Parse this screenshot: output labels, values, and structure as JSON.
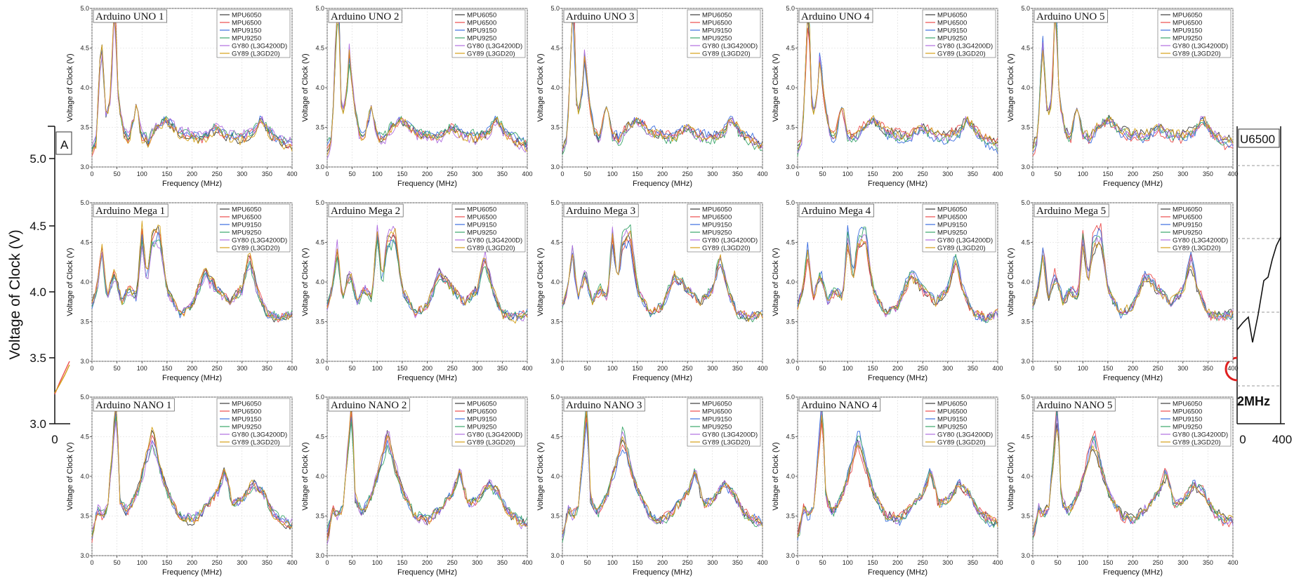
{
  "colors": {
    "MPU6050": "#3c3c3c",
    "MPU6500": "#ec4c4c",
    "MPU9150": "#3c6fe0",
    "MPU9250": "#3aa66a",
    "GY80 (L3G4200D)": "#b06ee0",
    "GY89 (L3GD20)": "#d4a017",
    "grid": "#d9d9d9",
    "highlight_circle": "#e02020"
  },
  "background_figure": {
    "ylabel": "Voltage of Clock (V)",
    "y_ticks": [
      "5.0",
      "4.5",
      "4.0",
      "3.5",
      "3.0"
    ],
    "left_x_tick": "0",
    "right_x_ticks": [
      "0",
      "400"
    ],
    "right_partial_legend": "U6500",
    "right_partial_label": "2MHz",
    "left_partial_title": "A"
  },
  "chart_data": [
    {
      "type": "line",
      "title": "Arduino UNO 1",
      "row": "UNO",
      "peak_x": 45,
      "col": 0
    },
    {
      "type": "line",
      "title": "Arduino UNO 2",
      "row": "UNO",
      "peak_x": 22,
      "col": 1
    },
    {
      "type": "line",
      "title": "Arduino UNO 3",
      "row": "UNO",
      "peak_x": 22,
      "col": 2
    },
    {
      "type": "line",
      "title": "Arduino UNO 4",
      "row": "UNO",
      "peak_x": 22,
      "col": 3
    },
    {
      "type": "line",
      "title": "Arduino UNO 5",
      "row": "UNO",
      "peak_x": 45,
      "col": 4
    },
    {
      "type": "line",
      "title": "Arduino Mega 1",
      "row": "Mega",
      "peak_x": 100,
      "col": 0
    },
    {
      "type": "line",
      "title": "Arduino Mega 2",
      "row": "Mega",
      "peak_x": 100,
      "col": 1
    },
    {
      "type": "line",
      "title": "Arduino Mega 3",
      "row": "Mega",
      "peak_x": 100,
      "col": 2
    },
    {
      "type": "line",
      "title": "Arduino Mega 4",
      "row": "Mega",
      "peak_x": 100,
      "col": 3
    },
    {
      "type": "line",
      "title": "Arduino Mega 5",
      "row": "Mega",
      "peak_x": 100,
      "col": 4
    },
    {
      "type": "line",
      "title": "Arduino NANO 1",
      "row": "NANO",
      "peak_x": 48,
      "col": 0
    },
    {
      "type": "line",
      "title": "Arduino NANO 2",
      "row": "NANO",
      "peak_x": 48,
      "col": 1
    },
    {
      "type": "line",
      "title": "Arduino NANO 3",
      "row": "NANO",
      "peak_x": 48,
      "col": 2
    },
    {
      "type": "line",
      "title": "Arduino NANO 4",
      "row": "NANO",
      "peak_x": 48,
      "col": 3
    },
    {
      "type": "line",
      "title": "Arduino NANO 5",
      "row": "NANO",
      "peak_x": 48,
      "col": 4
    }
  ],
  "shared_axes": {
    "xlabel": "Frequency (MHz)",
    "ylabel": "Voltage of Clock (V)",
    "xlim": [
      0,
      400
    ],
    "ylim": [
      3.0,
      5.0
    ],
    "x_ticks": [
      "0",
      "50",
      "100",
      "150",
      "200",
      "250",
      "300",
      "350",
      "400"
    ],
    "y_ticks": [
      "3.0",
      "3.5",
      "4.0",
      "4.5",
      "5.0"
    ],
    "grid": true,
    "legend_position": "top-right"
  },
  "series_names": [
    "MPU6050",
    "MPU6500",
    "MPU9150",
    "MPU9250",
    "GY80 (L3G4200D)",
    "GY89 (L3GD20)"
  ],
  "row_profiles": {
    "UNO": {
      "points": [
        [
          0,
          3.2
        ],
        [
          10,
          3.35
        ],
        [
          20,
          4.6
        ],
        [
          30,
          3.6
        ],
        [
          40,
          3.9
        ],
        [
          45,
          4.4
        ],
        [
          55,
          3.8
        ],
        [
          65,
          3.45
        ],
        [
          75,
          3.35
        ],
        [
          90,
          3.78
        ],
        [
          100,
          3.4
        ],
        [
          115,
          3.35
        ],
        [
          130,
          3.5
        ],
        [
          150,
          3.6
        ],
        [
          175,
          3.45
        ],
        [
          200,
          3.4
        ],
        [
          225,
          3.38
        ],
        [
          250,
          3.5
        ],
        [
          275,
          3.4
        ],
        [
          300,
          3.38
        ],
        [
          325,
          3.45
        ],
        [
          340,
          3.62
        ],
        [
          355,
          3.45
        ],
        [
          375,
          3.35
        ],
        [
          400,
          3.28
        ]
      ]
    },
    "Mega": {
      "points": [
        [
          0,
          3.7
        ],
        [
          10,
          3.9
        ],
        [
          20,
          4.4
        ],
        [
          30,
          3.8
        ],
        [
          45,
          4.1
        ],
        [
          60,
          3.75
        ],
        [
          75,
          3.9
        ],
        [
          90,
          3.8
        ],
        [
          100,
          4.6
        ],
        [
          110,
          4.0
        ],
        [
          120,
          4.5
        ],
        [
          135,
          4.6
        ],
        [
          150,
          3.9
        ],
        [
          175,
          3.6
        ],
        [
          200,
          3.7
        ],
        [
          225,
          4.1
        ],
        [
          250,
          3.9
        ],
        [
          275,
          3.75
        ],
        [
          300,
          3.9
        ],
        [
          315,
          4.3
        ],
        [
          330,
          3.9
        ],
        [
          350,
          3.6
        ],
        [
          375,
          3.55
        ],
        [
          400,
          3.6
        ]
      ]
    },
    "NANO": {
      "points": [
        [
          0,
          3.25
        ],
        [
          10,
          3.6
        ],
        [
          20,
          3.5
        ],
        [
          30,
          3.6
        ],
        [
          40,
          4.3
        ],
        [
          48,
          4.9
        ],
        [
          55,
          3.7
        ],
        [
          70,
          3.55
        ],
        [
          90,
          3.8
        ],
        [
          110,
          4.25
        ],
        [
          120,
          4.5
        ],
        [
          135,
          4.1
        ],
        [
          150,
          3.8
        ],
        [
          175,
          3.5
        ],
        [
          200,
          3.45
        ],
        [
          225,
          3.6
        ],
        [
          250,
          3.8
        ],
        [
          265,
          4.05
        ],
        [
          280,
          3.65
        ],
        [
          300,
          3.7
        ],
        [
          320,
          3.9
        ],
        [
          340,
          3.8
        ],
        [
          360,
          3.55
        ],
        [
          380,
          3.45
        ],
        [
          400,
          3.4
        ]
      ]
    }
  }
}
